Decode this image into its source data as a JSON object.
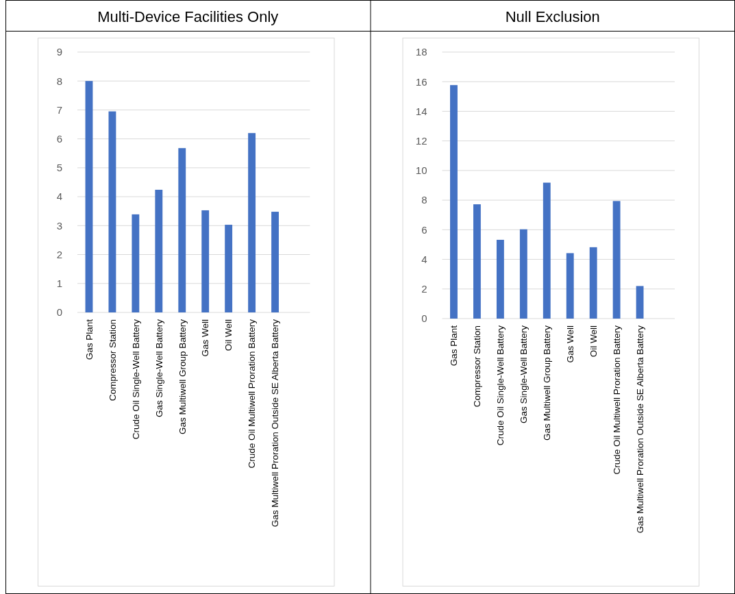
{
  "chart_data": [
    {
      "type": "bar",
      "title": "Multi-Device Facilities Only",
      "categories": [
        "Gas Plant",
        "Compressor Station",
        "Crude Oil Single-Well Battery",
        "Gas Single-Well Battery",
        "Gas Multiwell Group Battery",
        "Gas Well",
        "Oil Well",
        "Crude Oil Multiwell Proration Battery",
        "Gas Multiwell Proration Outside SE Alberta Battery",
        null
      ],
      "values": [
        8.0,
        6.95,
        3.39,
        4.24,
        5.68,
        3.53,
        3.03,
        6.2,
        3.48,
        null
      ],
      "color": "#4472c4",
      "ylim": [
        0,
        9
      ],
      "yticks": [
        0,
        1,
        2,
        3,
        4,
        5,
        6,
        7,
        8,
        9
      ],
      "grid": "y"
    },
    {
      "type": "bar",
      "title": "Null Exclusion",
      "categories": [
        "Gas Plant",
        "Compressor Station",
        "Crude Oil Single-Well Battery",
        "Gas Single-Well Battery",
        "Gas Multiwell Group Battery",
        "Gas Well",
        "Oil Well",
        "Crude Oil Multiwell Proration Battery",
        "Gas Multiwell Proration Outside SE Alberta Battery",
        null
      ],
      "values": [
        15.77,
        7.72,
        5.32,
        6.03,
        9.18,
        4.42,
        4.82,
        7.94,
        2.2,
        null
      ],
      "color": "#4472c4",
      "ylim": [
        0,
        18
      ],
      "yticks": [
        0,
        2,
        4,
        6,
        8,
        10,
        12,
        14,
        16,
        18
      ],
      "grid": "y"
    }
  ]
}
